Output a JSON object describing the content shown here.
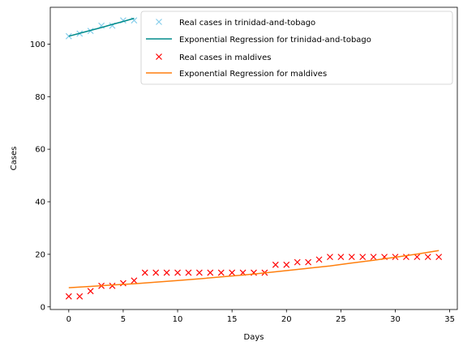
{
  "chart_data": {
    "type": "scatter",
    "xlabel": "Days",
    "ylabel": "Cases",
    "xlim": [
      -1.7,
      35.7
    ],
    "ylim": [
      -1,
      114
    ],
    "x_ticks": [
      0,
      5,
      10,
      15,
      20,
      25,
      30,
      35
    ],
    "y_ticks": [
      0,
      20,
      40,
      60,
      80,
      100
    ],
    "grid": false,
    "legend_position": "top-right",
    "series": [
      {
        "name": "Real cases in trinidad-and-tobago",
        "kind": "points",
        "marker": "x",
        "color": "#87ceeb",
        "x": [
          0,
          1,
          2,
          3,
          4,
          5,
          6
        ],
        "y": [
          103,
          104,
          105,
          107,
          107,
          109,
          109
        ]
      },
      {
        "name": "Exponential Regression for trinidad-and-tobago",
        "kind": "line",
        "color": "#008b8b",
        "x": [
          0,
          1,
          2,
          3,
          4,
          5,
          6
        ],
        "y": [
          103,
          104.1,
          105.2,
          106.3,
          107.5,
          108.6,
          109.8
        ]
      },
      {
        "name": "Real cases in maldives",
        "kind": "points",
        "marker": "x",
        "color": "#ff0000",
        "x": [
          0,
          1,
          2,
          3,
          4,
          5,
          6,
          7,
          8,
          9,
          10,
          11,
          12,
          13,
          14,
          15,
          16,
          17,
          18,
          19,
          20,
          21,
          22,
          23,
          24,
          25,
          26,
          27,
          28,
          29,
          30,
          31,
          32,
          33,
          34
        ],
        "y": [
          4,
          4,
          6,
          8,
          8,
          9,
          10,
          13,
          13,
          13,
          13,
          13,
          13,
          13,
          13,
          13,
          13,
          13,
          13,
          16,
          16,
          17,
          17,
          18,
          19,
          19,
          19,
          19,
          19,
          19,
          19,
          19,
          19,
          19,
          19
        ]
      },
      {
        "name": "Exponential Regression for maldives",
        "kind": "line",
        "color": "#ff7f0e",
        "x": [
          0,
          2,
          4,
          6,
          8,
          10,
          12,
          14,
          16,
          18,
          20,
          22,
          24,
          26,
          28,
          30,
          32,
          34
        ],
        "y": [
          7.3,
          7.8,
          8.3,
          8.8,
          9.4,
          10.0,
          10.7,
          11.4,
          12.1,
          12.9,
          13.8,
          14.7,
          15.6,
          16.7,
          17.7,
          18.9,
          20.1,
          21.4
        ]
      }
    ]
  }
}
